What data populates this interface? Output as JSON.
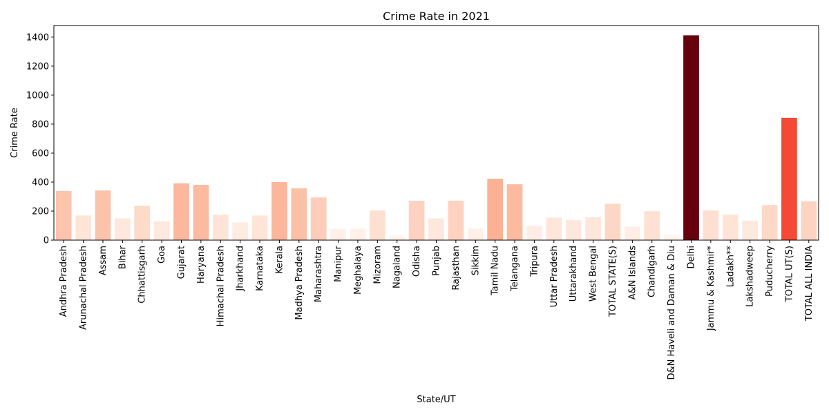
{
  "chart_data": {
    "type": "bar",
    "title": "Crime Rate in 2021",
    "xlabel": "State/UT",
    "ylabel": "Crime Rate",
    "ylim": [
      0,
      1480
    ],
    "yticks": [
      0,
      200,
      400,
      600,
      800,
      1000,
      1200,
      1400
    ],
    "colormap": "Reds",
    "grid": false,
    "categories": [
      "Andhra Pradesh",
      "Arunachal Pradesh",
      "Assam",
      "Bihar",
      "Chhattisgarh",
      "Goa",
      "Gujarat",
      "Haryana",
      "Himachal Pradesh",
      "Jharkhand",
      "Karnataka",
      "Kerala",
      "Madhya Pradesh",
      "Maharashtra",
      "Manipur",
      "Meghalaya",
      "Mizoram",
      "Nagaland",
      "Odisha",
      "Punjab",
      "Rajasthan",
      "Sikkim",
      "Tamil Nadu",
      "Telangana",
      "Tripura",
      "Uttar Pradesh",
      "Uttarakhand",
      "West Bengal",
      "TOTAL STATE(S)",
      "A&N Islands",
      "Chandigarh",
      "D&N Haveli and Daman & Diu",
      "Delhi",
      "Jammu & Kashmir*",
      "Ladakh**",
      "Lakshadweep",
      "Puducherry",
      "TOTAL UT(S)",
      "TOTAL ALL INDIA"
    ],
    "values": [
      338,
      170,
      343,
      150,
      237,
      131,
      392,
      381,
      176,
      121,
      170,
      400,
      357,
      294,
      78,
      80,
      205,
      35,
      271,
      150,
      272,
      80,
      423,
      385,
      98,
      155,
      138,
      160,
      251,
      93,
      199,
      38,
      1412,
      205,
      176,
      134,
      242,
      843,
      268
    ]
  }
}
